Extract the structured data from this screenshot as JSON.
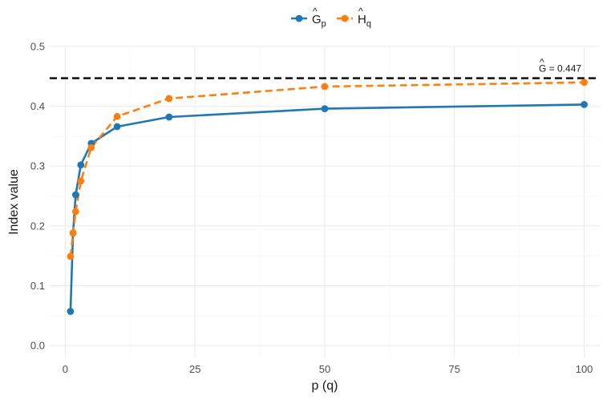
{
  "chart_data": {
    "type": "line",
    "xlabel": "p (q)",
    "ylabel": "Index value",
    "xlim": [
      -3,
      103
    ],
    "ylim": [
      -0.02,
      0.5
    ],
    "x_ticks": [
      0,
      25,
      50,
      75,
      100
    ],
    "y_ticks": [
      0.0,
      0.1,
      0.2,
      0.3,
      0.4,
      0.5
    ],
    "x_tick_labels": [
      "0",
      "25",
      "50",
      "75",
      "100"
    ],
    "y_tick_labels": [
      "0.0",
      "0.1",
      "0.2",
      "0.3",
      "0.4",
      "0.5"
    ],
    "grid": true,
    "legend_position": "top",
    "series": [
      {
        "name": "Ĝp",
        "legend_base": "G",
        "legend_sub": "p",
        "color": "#1f77b4",
        "line_style": "solid",
        "x": [
          1,
          1.5,
          2,
          3,
          5,
          10,
          20,
          50,
          100
        ],
        "values": [
          0.057,
          0.188,
          0.252,
          0.302,
          0.338,
          0.366,
          0.382,
          0.396,
          0.403
        ]
      },
      {
        "name": "Ĥq",
        "legend_base": "H",
        "legend_sub": "q",
        "color": "#ff7f0e",
        "line_style": "dashed",
        "x": [
          1,
          1.5,
          2,
          3,
          5,
          10,
          20,
          50,
          100
        ],
        "values": [
          0.149,
          0.188,
          0.224,
          0.275,
          0.331,
          0.383,
          0.413,
          0.433,
          0.44
        ]
      }
    ],
    "reference_line": {
      "y": 0.447,
      "color": "#000000",
      "line_style": "dashed",
      "label_base": "G",
      "label_rest": " = 0.447"
    }
  }
}
